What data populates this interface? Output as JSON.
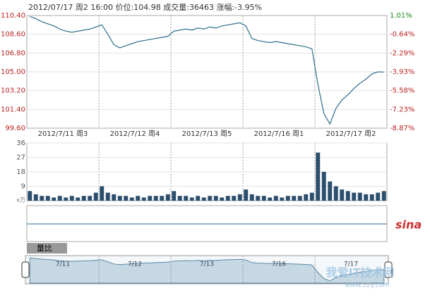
{
  "chart_data": [
    {
      "type": "line",
      "title": "2012/07/17 周2 16:00 价位:104.98 成交量:36463 涨幅:-3.95%",
      "days": [
        "2012/7/11 周3",
        "2012/7/12 周4",
        "2012/7/13 周5",
        "2012/7/16 周1",
        "2012/7/17 周2"
      ],
      "color": "#2b6f8c",
      "values": [
        110.3,
        110.1,
        109.8,
        109.6,
        109.4,
        109.1,
        108.9,
        108.8,
        108.9,
        109.0,
        109.1,
        109.3,
        109.5,
        108.6,
        107.6,
        107.3,
        107.5,
        107.7,
        107.9,
        108.0,
        108.1,
        108.2,
        108.3,
        108.4,
        108.9,
        109.0,
        109.1,
        109.0,
        109.2,
        109.1,
        109.3,
        109.2,
        109.4,
        109.5,
        109.6,
        109.7,
        109.4,
        108.2,
        108.0,
        107.9,
        107.8,
        107.9,
        107.8,
        107.7,
        107.6,
        107.5,
        107.4,
        107.2,
        103.8,
        101.0,
        100.0,
        101.5,
        102.3,
        102.8,
        103.4,
        103.9,
        104.3,
        104.8,
        105.0,
        104.98
      ],
      "ylim": [
        99.6,
        110.4
      ],
      "yticks": [
        {
          "value": 110.4,
          "label": "110.40"
        },
        {
          "value": 108.6,
          "label": "108.60"
        },
        {
          "value": 106.8,
          "label": "106.80"
        },
        {
          "value": 105,
          "label": "105.00"
        },
        {
          "value": 103.2,
          "label": "103.20"
        },
        {
          "value": 101.4,
          "label": "101.40"
        },
        {
          "value": 99.6,
          "label": "99.60"
        }
      ],
      "y2lim": [
        -8.87,
        1.01
      ],
      "y2ticks": [
        {
          "value": 1.01,
          "label": "1.01%"
        },
        {
          "value": -0.64,
          "label": "-0.64%"
        },
        {
          "value": -2.29,
          "label": "-2.29%"
        },
        {
          "value": -3.93,
          "label": "-3.93%"
        },
        {
          "value": -5.58,
          "label": "-5.58%"
        },
        {
          "value": -7.23,
          "label": "-7.23%"
        },
        {
          "value": -8.87,
          "label": "-8.87%"
        }
      ],
      "grid": true
    },
    {
      "type": "bar",
      "unit_label": "x万",
      "color": "#2d4f6e",
      "values": [
        6,
        4,
        3,
        3,
        2,
        3,
        2,
        3,
        2,
        3,
        3,
        5,
        9,
        5,
        4,
        3,
        3,
        2,
        3,
        2,
        3,
        3,
        3,
        4,
        6,
        3,
        3,
        2,
        3,
        2,
        3,
        3,
        2,
        3,
        3,
        4,
        7,
        4,
        3,
        3,
        2,
        3,
        2,
        3,
        3,
        3,
        4,
        5,
        30,
        18,
        12,
        9,
        7,
        6,
        5,
        5,
        4,
        4,
        5,
        6
      ],
      "ylim": [
        0,
        36
      ],
      "yticks": [
        9,
        18,
        27,
        36
      ],
      "grid": true,
      "ratio_label": "量比",
      "navigator_labels": [
        "7/11",
        "7/12",
        "7/13",
        "7/16",
        "7/17"
      ],
      "watermarks": [
        "sina",
        "我爱IT技术网",
        "www.52ij.com"
      ]
    }
  ]
}
